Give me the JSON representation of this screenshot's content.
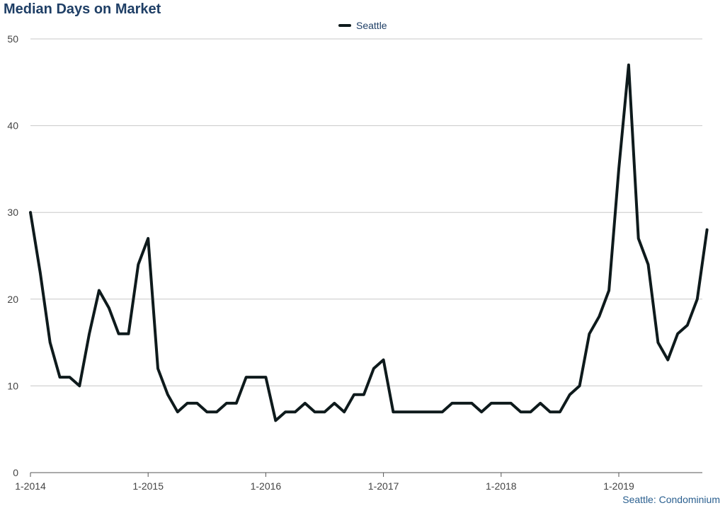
{
  "chart_data": {
    "type": "line",
    "title": "Median Days on Market",
    "xlabel": "",
    "ylabel": "",
    "ylim": [
      0,
      50
    ],
    "yticks": [
      0,
      10,
      20,
      30,
      40,
      50
    ],
    "xtick_labels": [
      "1-2014",
      "1-2015",
      "1-2016",
      "1-2017",
      "1-2018",
      "1-2019"
    ],
    "grid": true,
    "legend_position": "top-center",
    "x_start": "1-2014",
    "x_frequency": "monthly",
    "series": [
      {
        "name": "Seattle",
        "color": "#0e1a1c",
        "values": [
          30,
          23,
          15,
          11,
          11,
          10,
          16,
          21,
          19,
          16,
          16,
          24,
          27,
          12,
          9,
          7,
          8,
          8,
          7,
          7,
          8,
          8,
          11,
          11,
          11,
          6,
          7,
          7,
          8,
          7,
          7,
          8,
          7,
          9,
          9,
          12,
          13,
          7,
          7,
          7,
          7,
          7,
          7,
          8,
          8,
          8,
          7,
          8,
          8,
          8,
          7,
          7,
          8,
          7,
          7,
          9,
          10,
          16,
          18,
          21,
          35,
          47,
          27,
          24,
          15,
          13,
          16,
          17,
          20,
          28
        ]
      }
    ]
  },
  "source_label": "Seattle: Condominium"
}
